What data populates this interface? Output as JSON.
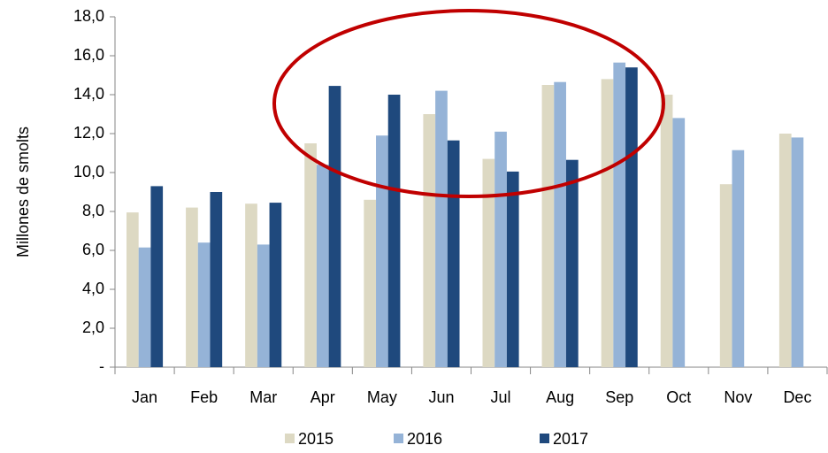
{
  "chart_data": {
    "type": "bar",
    "y_label": "Millones de smolts",
    "categories": [
      "Jan",
      "Feb",
      "Mar",
      "Apr",
      "May",
      "Jun",
      "Jul",
      "Aug",
      "Sep",
      "Oct",
      "Nov",
      "Dec"
    ],
    "series": [
      {
        "name": "2015",
        "color": "#ddd9c3",
        "values": [
          7.95,
          8.2,
          8.4,
          11.5,
          8.6,
          13.0,
          10.7,
          14.5,
          14.8,
          14.0,
          9.4,
          12.0
        ]
      },
      {
        "name": "2016",
        "color": "#95b3d7",
        "values": [
          6.15,
          6.4,
          6.3,
          10.4,
          11.9,
          14.2,
          12.1,
          14.65,
          15.65,
          12.8,
          11.15,
          11.8
        ]
      },
      {
        "name": "2017",
        "color": "#1f497d",
        "values": [
          9.3,
          9.0,
          8.45,
          14.45,
          14.0,
          11.65,
          10.05,
          10.65,
          15.4,
          null,
          null,
          null
        ]
      }
    ],
    "ylim": [
      0,
      18
    ],
    "yticks": [
      {
        "value": 0,
        "label": "-"
      },
      {
        "value": 2,
        "label": "2,0"
      },
      {
        "value": 4,
        "label": "4,0"
      },
      {
        "value": 6,
        "label": "6,0"
      },
      {
        "value": 8,
        "label": "8,0"
      },
      {
        "value": 10,
        "label": "10,0"
      },
      {
        "value": 12,
        "label": "12,0"
      },
      {
        "value": 14,
        "label": "14,0"
      },
      {
        "value": 16,
        "label": "16,0"
      },
      {
        "value": 18,
        "label": "18,0"
      }
    ],
    "grid": false,
    "legend": "bottom"
  }
}
